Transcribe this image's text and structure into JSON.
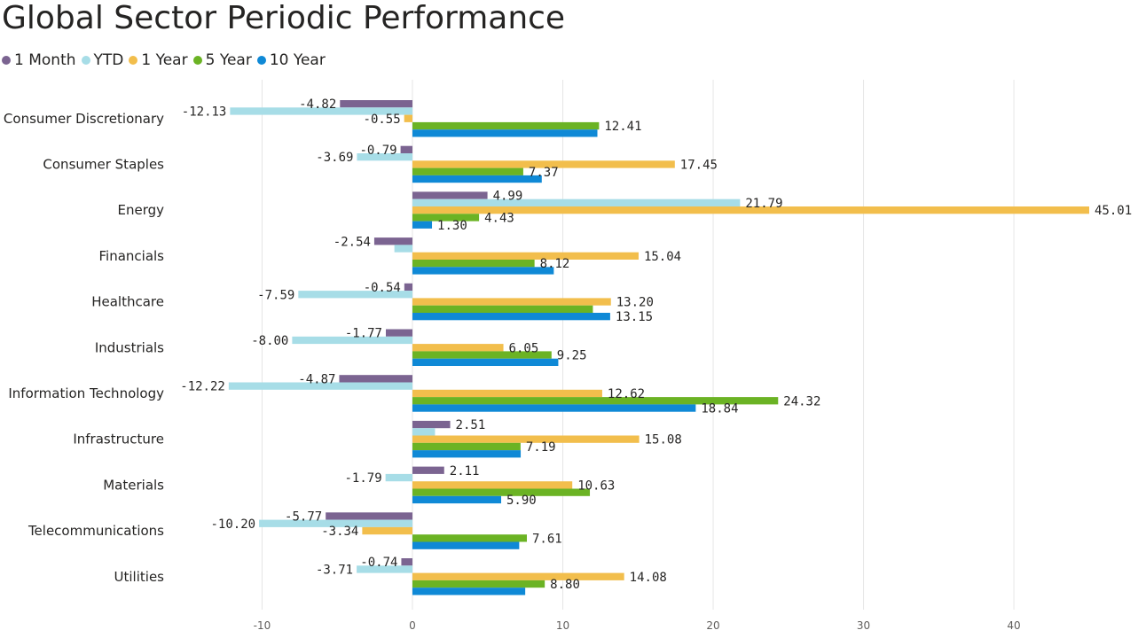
{
  "chart_data": {
    "type": "bar",
    "orientation": "horizontal",
    "title": "Global Sector Periodic Performance",
    "categories": [
      "Consumer Discretionary",
      "Consumer Staples",
      "Energy",
      "Financials",
      "Healthcare",
      "Industrials",
      "Information Technology",
      "Infrastructure",
      "Materials",
      "Telecommunications",
      "Utilities"
    ],
    "series": [
      {
        "name": "1 Month",
        "color": "#7B6491",
        "values": [
          -4.82,
          -0.79,
          4.99,
          -2.54,
          -0.54,
          -1.77,
          -4.87,
          2.51,
          2.11,
          -5.77,
          -0.74
        ]
      },
      {
        "name": "YTD",
        "color": "#A7DDE7",
        "values": [
          -12.13,
          -3.69,
          21.79,
          -1.2,
          -7.59,
          -8.0,
          -12.22,
          1.5,
          -1.79,
          -10.2,
          -3.71
        ]
      },
      {
        "name": "1 Year",
        "color": "#F2BE4C",
        "values": [
          -0.55,
          17.45,
          45.01,
          15.04,
          13.2,
          6.05,
          12.62,
          15.08,
          10.63,
          -3.34,
          14.08
        ]
      },
      {
        "name": "5 Year",
        "color": "#6BB324",
        "values": [
          12.41,
          7.37,
          4.43,
          8.12,
          12.0,
          9.25,
          24.32,
          7.19,
          11.8,
          7.61,
          8.8
        ]
      },
      {
        "name": "10 Year",
        "color": "#0F89D6",
        "values": [
          12.3,
          8.6,
          1.3,
          9.4,
          13.15,
          9.7,
          18.84,
          7.2,
          5.9,
          7.1,
          7.5
        ]
      }
    ],
    "data_labels": [
      [
        "-4.82",
        "-12.13",
        "-0.55",
        "12.41",
        ""
      ],
      [
        "-0.79",
        "-3.69",
        "17.45",
        "7.37",
        ""
      ],
      [
        "4.99",
        "21.79",
        "45.01",
        "4.43",
        "1.30"
      ],
      [
        "-2.54",
        "",
        "15.04",
        "8.12",
        ""
      ],
      [
        "-0.54",
        "-7.59",
        "13.20",
        "",
        "13.15"
      ],
      [
        "-1.77",
        "-8.00",
        "6.05",
        "9.25",
        ""
      ],
      [
        "-4.87",
        "-12.22",
        "12.62",
        "24.32",
        "18.84"
      ],
      [
        "2.51",
        "",
        "15.08",
        "7.19",
        ""
      ],
      [
        "2.11",
        "-1.79",
        "10.63",
        "",
        "5.90"
      ],
      [
        "-5.77",
        "-10.20",
        "-3.34",
        "7.61",
        ""
      ],
      [
        "-0.74",
        "-3.71",
        "14.08",
        "8.80",
        ""
      ]
    ],
    "x_ticks": [
      -10,
      0,
      10,
      20,
      30,
      40
    ],
    "xlim": [
      -13,
      47
    ],
    "xlabel": "",
    "ylabel": "",
    "grid": true,
    "legend_position": "top-left"
  }
}
